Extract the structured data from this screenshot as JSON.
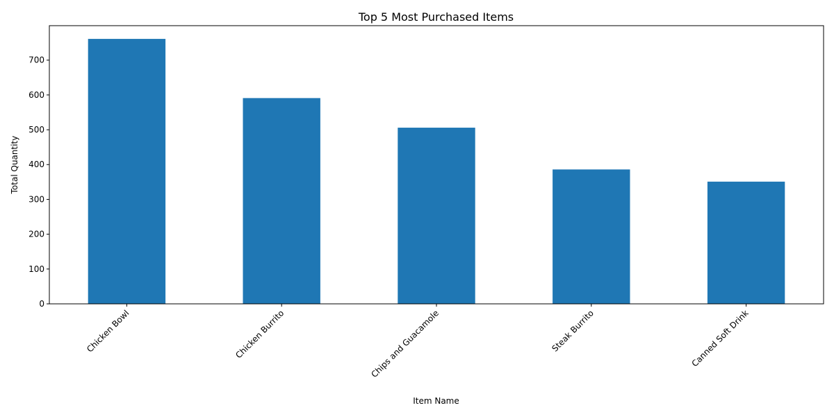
{
  "chart_data": {
    "type": "bar",
    "title": "Top 5 Most Purchased Items",
    "xlabel": "Item Name",
    "ylabel": "Total Quantity",
    "categories": [
      "Chicken Bowl",
      "Chicken Burrito",
      "Chips and Guacamole",
      "Steak Burrito",
      "Canned Soft Drink"
    ],
    "values": [
      761,
      591,
      506,
      386,
      351
    ],
    "ylim": [
      0,
      799
    ],
    "yticks": [
      0,
      100,
      200,
      300,
      400,
      500,
      600,
      700
    ],
    "grid": false,
    "legend": "none",
    "bar_color": "#1f77b4"
  }
}
